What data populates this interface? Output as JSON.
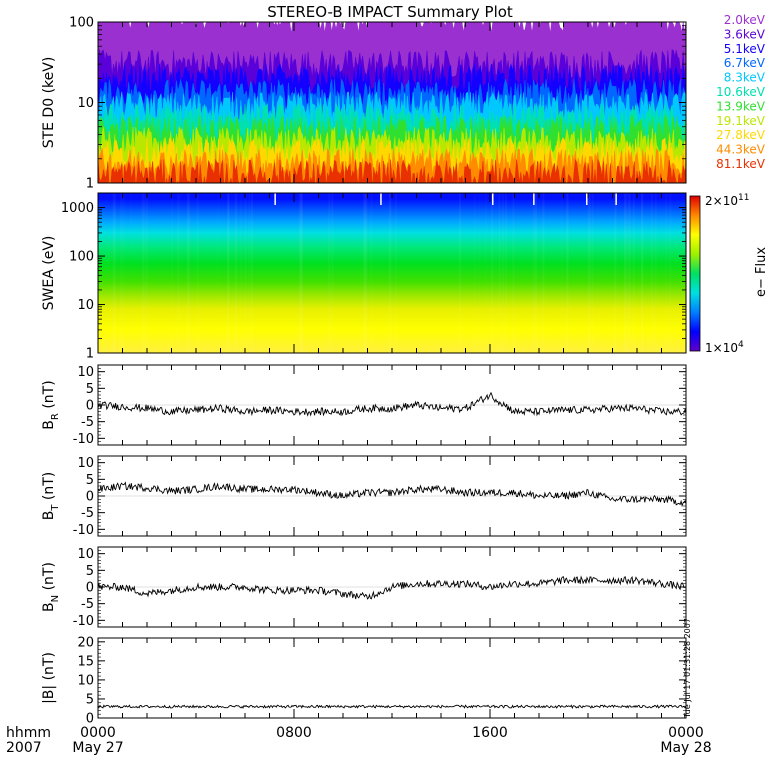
{
  "title": "STEREO-B IMPACT Summary Plot",
  "timestamp": "Tue Jul 17 01:31:28 2007",
  "time_axis": {
    "label_line1": "hhmm",
    "label_line2": "2007",
    "ticks": [
      {
        "hour": 0,
        "label": "0000",
        "date": "May 27"
      },
      {
        "hour": 8,
        "label": "0800",
        "date": ""
      },
      {
        "hour": 16,
        "label": "1600",
        "date": ""
      },
      {
        "hour": 24,
        "label": "0000",
        "date": "May 28"
      }
    ]
  },
  "colors": {
    "spectrogram": [
      "#7000c0",
      "#0000ff",
      "#00c8ff",
      "#00e070",
      "#ffff00",
      "#ff8800",
      "#e00000"
    ],
    "trace": "#000000"
  },
  "chart_data": [
    {
      "id": "ste",
      "type": "line",
      "ylabel": "STE D0 (keV)",
      "yscale": "log",
      "ylim": [
        1,
        100
      ],
      "yticks": [
        {
          "v": 1,
          "label": "1"
        },
        {
          "v": 10,
          "label": "10"
        },
        {
          "v": 100,
          "label": "100"
        }
      ],
      "series": [
        {
          "name": "2.0keV",
          "color": "#9b30d0",
          "level": 100
        },
        {
          "name": "3.6keV",
          "color": "#5a00d8",
          "level": 30
        },
        {
          "name": "5.1keV",
          "color": "#1400ff",
          "level": 20
        },
        {
          "name": "6.7keV",
          "color": "#0068ff",
          "level": 13
        },
        {
          "name": "8.3keV",
          "color": "#00c8ff",
          "level": 9
        },
        {
          "name": "10.6keV",
          "color": "#00e0b0",
          "level": 6.5
        },
        {
          "name": "13.9keV",
          "color": "#30e030",
          "level": 4.6
        },
        {
          "name": "19.1keV",
          "color": "#b8e800",
          "level": 3.3
        },
        {
          "name": "27.8keV",
          "color": "#ffd800",
          "level": 2.4
        },
        {
          "name": "44.3keV",
          "color": "#ff8c00",
          "level": 1.8
        },
        {
          "name": "81.1keV",
          "color": "#e83000",
          "level": 1.3
        }
      ]
    },
    {
      "id": "swea",
      "type": "heatmap",
      "ylabel": "SWEA (eV)",
      "yscale": "log",
      "ylim": [
        1,
        2000
      ],
      "yticks": [
        {
          "v": 1,
          "label": "1"
        },
        {
          "v": 10,
          "label": "10"
        },
        {
          "v": 100,
          "label": "100"
        },
        {
          "v": 1000,
          "label": "1000"
        }
      ],
      "colorbar": {
        "label": "e− Flux",
        "max": "2x10^11",
        "min": "1x10^4",
        "max_base": "2×10",
        "max_exp": "11",
        "min_base": "1×10",
        "min_exp": "4"
      },
      "bands": [
        {
          "ev": 1500,
          "color": "#0010ff"
        },
        {
          "ev": 900,
          "color": "#0058ff"
        },
        {
          "ev": 500,
          "color": "#00a8ff"
        },
        {
          "ev": 300,
          "color": "#00e0e0"
        },
        {
          "ev": 150,
          "color": "#00e878"
        },
        {
          "ev": 70,
          "color": "#00e020"
        },
        {
          "ev": 30,
          "color": "#40e000"
        },
        {
          "ev": 15,
          "color": "#a0e800"
        },
        {
          "ev": 8,
          "color": "#e8f000"
        },
        {
          "ev": 3,
          "color": "#ffff00"
        },
        {
          "ev": 1,
          "color": "#fff040"
        }
      ]
    },
    {
      "id": "br",
      "type": "line",
      "ylabel": "BR (nT)",
      "ylabel_main": "B",
      "ylabel_sub": "R",
      "ylabel_unit": "(nT)",
      "ylim": [
        -12,
        12
      ],
      "yticks": [
        {
          "v": 10,
          "label": "10"
        },
        {
          "v": 5,
          "label": "5"
        },
        {
          "v": 0,
          "label": "0"
        },
        {
          "v": -5,
          "label": "-5"
        },
        {
          "v": -10,
          "label": "-10"
        }
      ],
      "series": [
        {
          "x": [
            0,
            1,
            2,
            3,
            4,
            5,
            6,
            7,
            8,
            9,
            10,
            11,
            12,
            13,
            14,
            15,
            16,
            17,
            18,
            19,
            20,
            21,
            22,
            23,
            24
          ],
          "y": [
            0,
            -0.5,
            -1,
            -2,
            -1.5,
            -1,
            -2,
            -1.5,
            -2,
            -2,
            -2,
            -1,
            -1,
            0,
            -1,
            -1,
            3,
            -2,
            -2,
            -1.5,
            -1.5,
            -1,
            -1,
            -2,
            -2
          ]
        }
      ]
    },
    {
      "id": "bt",
      "type": "line",
      "ylabel": "BT (nT)",
      "ylabel_main": "B",
      "ylabel_sub": "T",
      "ylabel_unit": "(nT)",
      "ylim": [
        -12,
        12
      ],
      "yticks": [
        {
          "v": 10,
          "label": "10"
        },
        {
          "v": 5,
          "label": "5"
        },
        {
          "v": 0,
          "label": "0"
        },
        {
          "v": -5,
          "label": "-5"
        },
        {
          "v": -10,
          "label": "-10"
        }
      ],
      "series": [
        {
          "x": [
            0,
            1,
            2,
            3,
            4,
            5,
            6,
            7,
            8,
            9,
            10,
            11,
            12,
            13,
            14,
            15,
            16,
            17,
            18,
            19,
            20,
            21,
            22,
            23,
            24
          ],
          "y": [
            2,
            3,
            2.5,
            1.5,
            2,
            3,
            2,
            2,
            2,
            1,
            0,
            1,
            1,
            2,
            2,
            1,
            1,
            1,
            0,
            0,
            1,
            -1,
            -1,
            -1,
            -2
          ]
        }
      ]
    },
    {
      "id": "bn",
      "type": "line",
      "ylabel": "BN (nT)",
      "ylabel_main": "B",
      "ylabel_sub": "N",
      "ylabel_unit": "(nT)",
      "ylim": [
        -12,
        12
      ],
      "yticks": [
        {
          "v": 10,
          "label": "10"
        },
        {
          "v": 5,
          "label": "5"
        },
        {
          "v": 0,
          "label": "0"
        },
        {
          "v": -5,
          "label": "-5"
        },
        {
          "v": -10,
          "label": "-10"
        }
      ],
      "series": [
        {
          "x": [
            0,
            1,
            2,
            3,
            4,
            5,
            6,
            7,
            8,
            9,
            10,
            11,
            12,
            13,
            14,
            15,
            16,
            17,
            18,
            19,
            20,
            21,
            22,
            23,
            24
          ],
          "y": [
            0,
            0,
            -2,
            -1,
            0,
            0,
            0,
            -1,
            -1,
            -1,
            -2,
            -3,
            0,
            1,
            1,
            1,
            0,
            1,
            1,
            2,
            2,
            2,
            2,
            1,
            0
          ]
        }
      ]
    },
    {
      "id": "bmag",
      "type": "line",
      "ylabel": "|B| (nT)",
      "ylabel_main": "|B|",
      "ylabel_sub": "",
      "ylabel_unit": "(nT)",
      "ylim": [
        0,
        21
      ],
      "yticks": [
        {
          "v": 20,
          "label": "20"
        },
        {
          "v": 15,
          "label": "15"
        },
        {
          "v": 10,
          "label": "10"
        },
        {
          "v": 5,
          "label": "5"
        },
        {
          "v": 0,
          "label": "0"
        }
      ],
      "series": [
        {
          "x": [
            0,
            2,
            4,
            6,
            8,
            10,
            12,
            14,
            16,
            18,
            20,
            22,
            24
          ],
          "y": [
            3,
            3,
            3,
            3,
            3,
            3,
            3,
            3,
            3,
            3,
            3,
            3,
            3
          ]
        }
      ]
    }
  ]
}
